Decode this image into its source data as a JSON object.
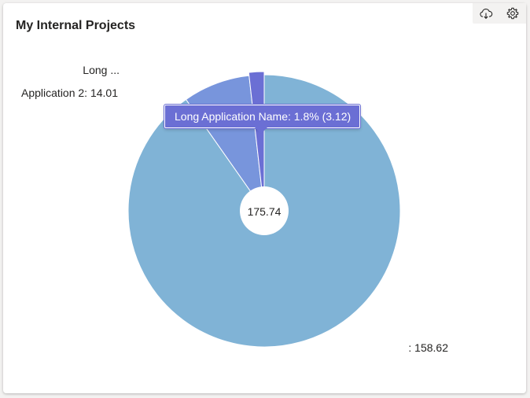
{
  "card": {
    "title": "My Internal Projects"
  },
  "toolbar": {
    "download_icon": "cloud-download-icon",
    "settings_icon": "gear-icon"
  },
  "tooltip": {
    "text": "Long Application Name: 1.8% (3.12)"
  },
  "center_label": "175.74",
  "colors": {
    "slice_main": "#80b3d6",
    "slice_app2": "#7895dc",
    "slice_long": "#6b6fd4",
    "tooltip_bg": "#6b6fd4"
  },
  "chart_data": {
    "type": "pie",
    "total": 175.74,
    "slices": [
      {
        "name": "",
        "value": 158.62,
        "label": ": 158.62"
      },
      {
        "name": "Application 2",
        "value": 14.01,
        "label": "Application 2: 14.01"
      },
      {
        "name": "Long Application Name",
        "value": 3.12,
        "label": "Long ..."
      }
    ]
  }
}
